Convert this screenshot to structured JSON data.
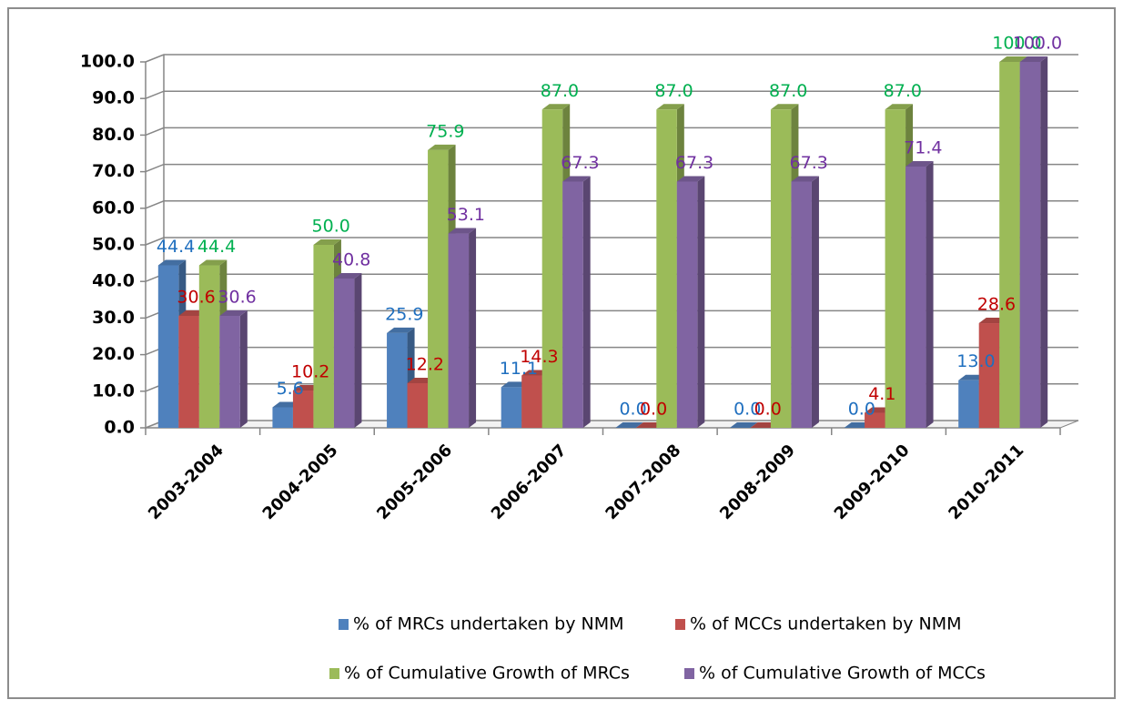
{
  "chart_data": {
    "type": "bar3d",
    "categories": [
      "2003-2004",
      "2004-2005",
      "2005-2006",
      "2006-2007",
      "2007-2008",
      "2008-2009",
      "2009-2010",
      "2010-2011"
    ],
    "series": [
      {
        "name": "% of MRCs undertaken by NMM",
        "color": "#4f81bd",
        "label_color": "#1f6fbf",
        "values": [
          44.4,
          5.6,
          25.9,
          11.1,
          0.0,
          0.0,
          0.0,
          13.0
        ],
        "value_labels": [
          "44.4",
          "5.6",
          "25.9",
          "11.1",
          "0.0",
          "0.0",
          "0.0",
          "13.0"
        ]
      },
      {
        "name": "% of MCCs undertaken by NMM",
        "color": "#c0504d",
        "label_color": "#c00000",
        "values": [
          30.6,
          10.2,
          12.2,
          14.3,
          0.0,
          0.0,
          4.1,
          28.6
        ],
        "value_labels": [
          "30.6",
          "10.2",
          "12.2",
          "14.3",
          "0.0",
          "0.0",
          "4.1",
          "28.6"
        ]
      },
      {
        "name": "% of Cumulative Growth of MRCs",
        "color": "#9bbb59",
        "label_color": "#00b050",
        "values": [
          44.4,
          50.0,
          75.9,
          87.0,
          87.0,
          87.0,
          87.0,
          100.0
        ],
        "value_labels": [
          "44.4",
          "50.0",
          "75.9",
          "87.0",
          "87.0",
          "87.0",
          "87.0",
          "100.0"
        ]
      },
      {
        "name": "% of Cumulative Growth of MCCs",
        "color": "#8064a2",
        "label_color": "#7030a0",
        "values": [
          30.6,
          40.8,
          53.1,
          67.3,
          67.3,
          67.3,
          71.4,
          100.0
        ],
        "value_labels": [
          "30.6",
          "40.8",
          "53.1",
          "67.3",
          "67.3",
          "67.3",
          "71.4",
          "100.0"
        ]
      }
    ],
    "ylim": [
      0,
      100
    ],
    "yticks": [
      {
        "value": 0,
        "label": "0.0"
      },
      {
        "value": 10,
        "label": "10.0"
      },
      {
        "value": 20,
        "label": "20.0"
      },
      {
        "value": 30,
        "label": "30.0"
      },
      {
        "value": 40,
        "label": "40.0"
      },
      {
        "value": 50,
        "label": "50.0"
      },
      {
        "value": 60,
        "label": "60.0"
      },
      {
        "value": 70,
        "label": "70.0"
      },
      {
        "value": 80,
        "label": "80.0"
      },
      {
        "value": 90,
        "label": "90.0"
      },
      {
        "value": 100,
        "label": "100.0"
      }
    ],
    "grid": true,
    "legend": "bottom"
  }
}
